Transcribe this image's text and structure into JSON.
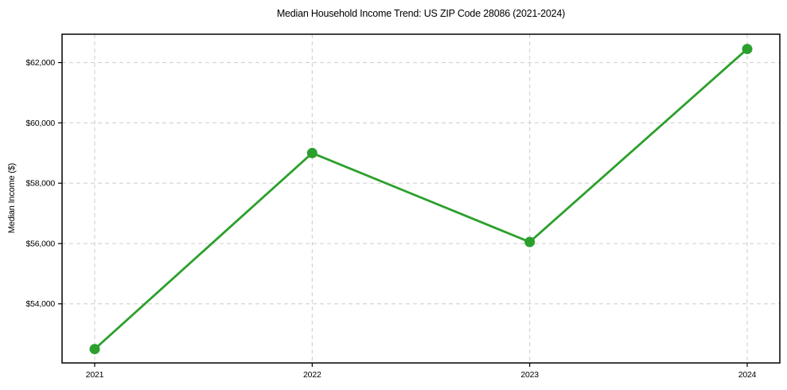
{
  "figure": {
    "background": "#ffffff",
    "spine_color": "#000000",
    "text_color": "#000000"
  },
  "chart_data": {
    "type": "line",
    "title": "Median Household Income Trend: US ZIP Code 28086 (2021-2024)",
    "xlabel": "",
    "ylabel": "Median Income ($)",
    "x": [
      2021,
      2022,
      2023,
      2024
    ],
    "x_tick_labels": [
      "2021",
      "2022",
      "2023",
      "2024"
    ],
    "values": [
      52500,
      59000,
      56050,
      62450
    ],
    "y_ticks": [
      54000,
      56000,
      58000,
      60000,
      62000
    ],
    "y_tick_labels": [
      "$54,000",
      "$56,000",
      "$58,000",
      "$60,000",
      "$62,000"
    ],
    "xlim": [
      2020.85,
      2024.15
    ],
    "ylim": [
      52040,
      62940
    ],
    "grid": true,
    "grid_style": "dashed",
    "grid_color": "#cccccc",
    "legend": false,
    "line_color": "#2ca02c",
    "marker": "circle"
  }
}
